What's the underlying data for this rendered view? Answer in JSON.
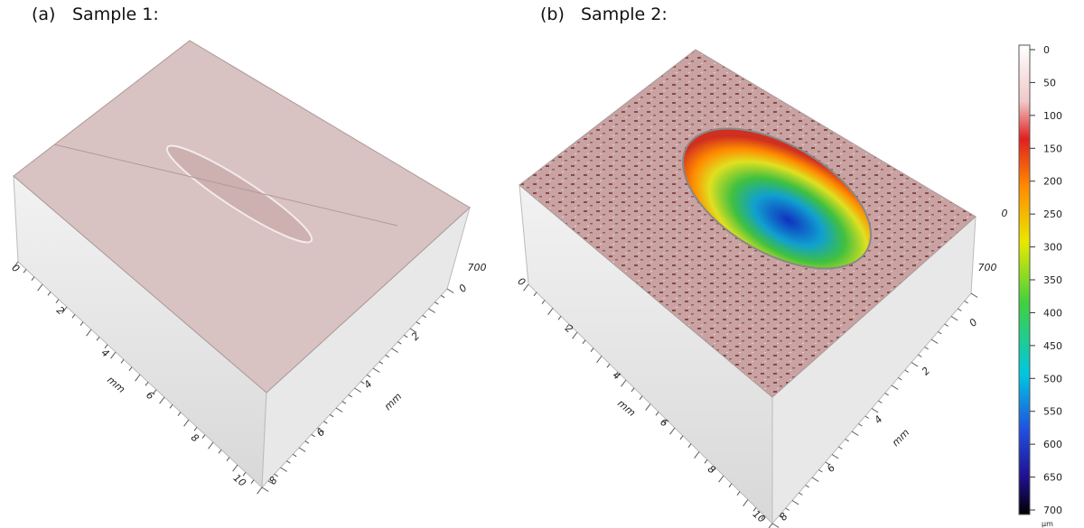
{
  "panels": [
    {
      "label": "(a)",
      "title": "Sample 1:",
      "x_axis": {
        "unit": "mm",
        "ticks": [
          "0",
          "2",
          "4",
          "6",
          "8",
          "10"
        ]
      },
      "y_axis": {
        "unit": "mm",
        "ticks": [
          "0",
          "2",
          "4",
          "6",
          "8"
        ]
      },
      "z_axis": {
        "ticks": [
          "700"
        ]
      }
    },
    {
      "label": "(b)",
      "title": "Sample 2:",
      "x_axis": {
        "unit": "mm",
        "ticks": [
          "0",
          "2",
          "4",
          "6",
          "8",
          "10"
        ]
      },
      "y_axis": {
        "unit": "mm",
        "ticks": [
          "0",
          "2",
          "4",
          "6",
          "8"
        ]
      },
      "z_axis": {
        "ticks": [
          "0",
          "700"
        ]
      }
    }
  ],
  "colorbar": {
    "ticks": [
      0,
      50,
      100,
      150,
      200,
      250,
      300,
      350,
      400,
      450,
      500,
      550,
      600,
      650,
      700
    ],
    "unit": "µm"
  }
}
